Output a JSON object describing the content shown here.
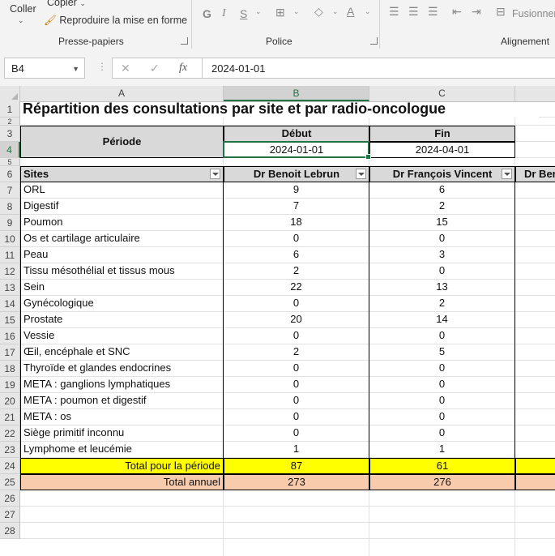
{
  "ribbon": {
    "clipboard": {
      "paste": "Coller",
      "copy": "Copier",
      "format_painter": "Reproduire la mise en forme",
      "group": "Presse-papiers"
    },
    "font": {
      "bold": "G",
      "italic": "I",
      "underline": "S",
      "color_letter": "A",
      "group": "Police"
    },
    "alignment": {
      "merge": "Fusionner",
      "group": "Alignement"
    }
  },
  "formula_bar": {
    "name_box": "B4",
    "value": "2024-01-01",
    "fx": "fx"
  },
  "columns": [
    "A",
    "B",
    "C"
  ],
  "rows": [
    "1",
    "2",
    "3",
    "4",
    "5",
    "6",
    "7",
    "8",
    "9",
    "10",
    "11",
    "12",
    "13",
    "14",
    "15",
    "16",
    "17",
    "18",
    "19",
    "20",
    "21",
    "22",
    "23",
    "24",
    "25",
    "26",
    "27",
    "28"
  ],
  "sheet": {
    "title": "Répartition des consultations par site et par radio-oncologue",
    "periode_label": "Période",
    "debut_label": "Début",
    "fin_label": "Fin",
    "debut_value": "2024-01-01",
    "fin_value": "2024-04-01",
    "header_sites": "Sites",
    "doctors": [
      "Dr Benoit Lebrun",
      "Dr François Vincent",
      "Dr Ber"
    ],
    "data": [
      [
        "ORL",
        "9",
        "6"
      ],
      [
        "Digestif",
        "7",
        "2"
      ],
      [
        "Poumon",
        "18",
        "15"
      ],
      [
        "Os et cartilage articulaire",
        "0",
        "0"
      ],
      [
        "Peau",
        "6",
        "3"
      ],
      [
        "Tissu mésothélial et tissus mous",
        "2",
        "0"
      ],
      [
        "Sein",
        "22",
        "13"
      ],
      [
        "Gynécologique",
        "0",
        "2"
      ],
      [
        "Prostate",
        "20",
        "14"
      ],
      [
        "Vessie",
        "0",
        "0"
      ],
      [
        "Œil, encéphale et SNC",
        "2",
        "5"
      ],
      [
        "Thyroïde et glandes endocrines",
        "0",
        "0"
      ],
      [
        "META : ganglions lymphatiques",
        "0",
        "0"
      ],
      [
        "META : poumon et digestif",
        "0",
        "0"
      ],
      [
        "META : os",
        "0",
        "0"
      ],
      [
        "Siège primitif inconnu",
        "0",
        "0"
      ],
      [
        "Lymphome et leucémie",
        "1",
        "1"
      ]
    ],
    "total_period": {
      "label": "Total pour la période",
      "b": "87",
      "c": "61"
    },
    "total_annual": {
      "label": "Total annuel",
      "b": "273",
      "c": "276"
    }
  },
  "colors": {
    "accent": "#217346",
    "yellow": "#ffff00",
    "peach": "#f8cbad",
    "header_gray": "#d9d9d9"
  }
}
